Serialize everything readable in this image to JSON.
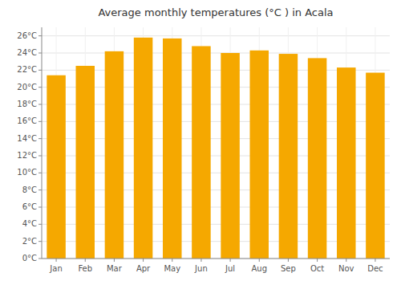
{
  "chart_data": {
    "type": "bar",
    "title": "Average monthly temperatures (°C ) in Acala",
    "categories": [
      "Jan",
      "Feb",
      "Mar",
      "Apr",
      "May",
      "Jun",
      "Jul",
      "Aug",
      "Sep",
      "Oct",
      "Nov",
      "Dec"
    ],
    "values": [
      21.4,
      22.5,
      24.2,
      25.8,
      25.7,
      24.8,
      24.0,
      24.3,
      23.9,
      23.4,
      22.3,
      21.7
    ],
    "color": "#F5A800",
    "ylim": [
      0,
      27
    ],
    "yticks": [
      {
        "value": 0,
        "label": "0°C"
      },
      {
        "value": 2,
        "label": "2°C"
      },
      {
        "value": 4,
        "label": "4°C"
      },
      {
        "value": 6,
        "label": "6°C"
      },
      {
        "value": 8,
        "label": "8°C"
      },
      {
        "value": 10,
        "label": "10°C"
      },
      {
        "value": 12,
        "label": "12°C"
      },
      {
        "value": 14,
        "label": "14°C"
      },
      {
        "value": 16,
        "label": "16°C"
      },
      {
        "value": 18,
        "label": "18°C"
      },
      {
        "value": 20,
        "label": "20°C"
      },
      {
        "value": 22,
        "label": "22°C"
      },
      {
        "value": 24,
        "label": "24°C"
      },
      {
        "value": 26,
        "label": "26°C"
      }
    ],
    "grid": true
  }
}
